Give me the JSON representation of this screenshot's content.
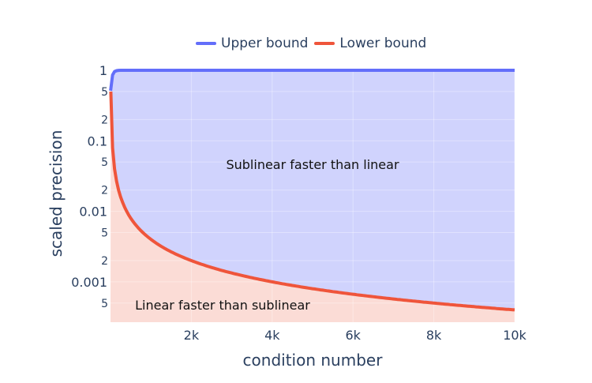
{
  "chart_data": {
    "type": "area",
    "title": "",
    "xlabel": "condition number",
    "ylabel": "scaled precision",
    "xlim": [
      0,
      10000
    ],
    "ylim": [
      0.00025,
      1.2
    ],
    "yscale": "log",
    "grid": true,
    "legend_position": "top-center",
    "x_ticks": [
      "2k",
      "4k",
      "6k",
      "8k",
      "10k"
    ],
    "x_tick_values": [
      2000,
      4000,
      6000,
      8000,
      10000
    ],
    "y_ticks_major": [
      "1",
      "0.1",
      "0.01",
      "0.001"
    ],
    "y_ticks_minor_labels": [
      "5",
      "2",
      "5",
      "2",
      "5",
      "2",
      "5"
    ],
    "series": [
      {
        "name": "Upper bound",
        "color": "#636efa",
        "fill": "tonexty",
        "fill_color": "#d0d3fd",
        "x": [
          1,
          50,
          100,
          200,
          500,
          1000,
          2000,
          4000,
          6000,
          8000,
          10000
        ],
        "values": [
          0.5,
          0.85,
          0.93,
          0.96,
          0.98,
          0.99,
          0.995,
          0.997,
          0.998,
          0.999,
          1.0
        ]
      },
      {
        "name": "Lower bound",
        "color": "#ef553b",
        "fill": "tozeroy",
        "fill_color": "#fbdcd6",
        "x": [
          8,
          20,
          50,
          100,
          200,
          300,
          500,
          1000,
          2000,
          3000,
          4000,
          6000,
          8000,
          10000
        ],
        "values": [
          0.5,
          0.2,
          0.08,
          0.04,
          0.02,
          0.0133,
          0.008,
          0.004,
          0.002,
          0.00133,
          0.001,
          0.00067,
          0.0005,
          0.0004
        ]
      }
    ],
    "annotations": [
      {
        "text": "Sublinear faster than linear",
        "x": 5000,
        "y": 0.05
      },
      {
        "text": "Linear faster than sublinear",
        "x": 2500,
        "y": 0.00035
      }
    ]
  },
  "legend": {
    "upper_label": "Upper bound",
    "lower_label": "Lower bound",
    "upper_color": "#636efa",
    "lower_color": "#ef553b"
  }
}
